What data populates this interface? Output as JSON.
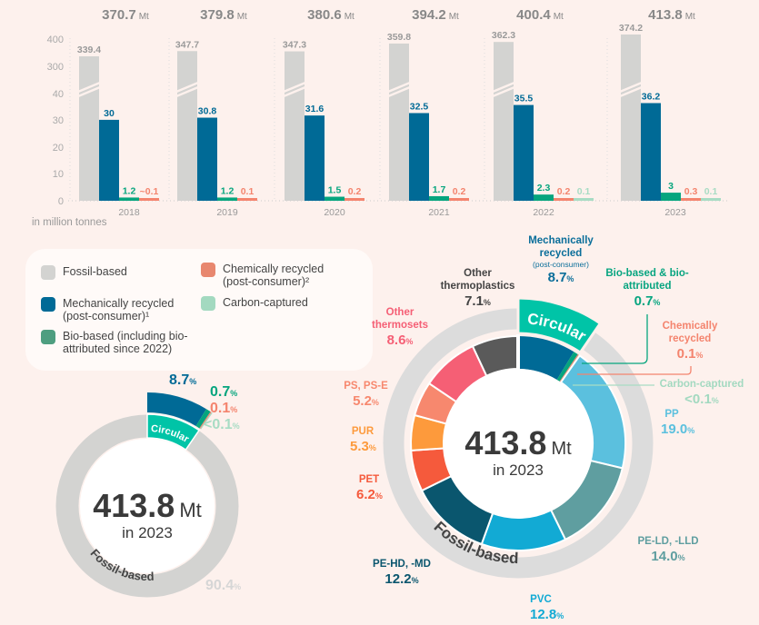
{
  "chart_data": [
    {
      "type": "bar",
      "unit_label": "in million tonnes",
      "y_ticks": [
        0,
        10,
        20,
        30,
        40,
        300,
        400
      ],
      "y_axis_break": "between 40 and 300",
      "grid": false,
      "categories": [
        "2018",
        "2019",
        "2020",
        "2021",
        "2022",
        "2023"
      ],
      "totals": [
        "370.7",
        "379.8",
        "380.6",
        "394.2",
        "400.4",
        "413.8"
      ],
      "total_unit": "Mt",
      "series": [
        {
          "name": "Fossil-based",
          "color": "#d3d3d1",
          "label_color": "#9a9a9a",
          "values": [
            339.4,
            347.7,
            347.3,
            359.8,
            362.3,
            374.2
          ],
          "labels": [
            "339.4",
            "347.7",
            "347.3",
            "359.8",
            "362.3",
            "374.2"
          ]
        },
        {
          "name": "Mechanically recycled (post-consumer)¹",
          "color": "#006a96",
          "label_color": "#006a96",
          "values": [
            30,
            30.8,
            31.6,
            32.5,
            35.5,
            36.2
          ],
          "labels": [
            "30",
            "30.8",
            "31.6",
            "32.5",
            "35.5",
            "36.2"
          ]
        },
        {
          "name": "Bio-based (including bio-attributed since 2022)",
          "color": "#06a57e",
          "label_color": "#06a57e",
          "values": [
            1.2,
            1.2,
            1.5,
            1.7,
            2.3,
            3
          ],
          "labels": [
            "1.2",
            "1.2",
            "1.5",
            "1.7",
            "2.3",
            "3"
          ]
        },
        {
          "name": "Chemically recycled (post-consumer)²",
          "color": "#f4846e",
          "label_color": "#f4846e",
          "values": [
            0.1,
            0.1,
            0.2,
            0.2,
            0.2,
            0.3
          ],
          "labels": [
            "~0.1",
            "0.1",
            "0.2",
            "0.2",
            "0.2",
            "0.3"
          ]
        },
        {
          "name": "Carbon-captured",
          "color": "#a8dcc4",
          "label_color": "#a8dcc4",
          "values": [
            null,
            null,
            null,
            null,
            0.1,
            0.1
          ],
          "labels": [
            null,
            null,
            null,
            null,
            "0.1",
            "0.1"
          ]
        }
      ]
    },
    {
      "type": "pie",
      "variant": "donut",
      "center_value": "413.8",
      "center_unit": "Mt",
      "center_sub": "in 2023",
      "ring_labels": {
        "circular": "Circular",
        "fossil": "Fossil-based"
      },
      "slices": [
        {
          "name": "Fossil-based",
          "value": 90.4,
          "label": "90.4",
          "color": "#d3d3d1"
        },
        {
          "name": "Mechanically recycled",
          "value": 8.7,
          "label": "8.7",
          "color": "#006a96"
        },
        {
          "name": "Bio-based",
          "value": 0.7,
          "label": "0.7",
          "color": "#06a57e"
        },
        {
          "name": "Chemically recycled",
          "value": 0.1,
          "label": "0.1",
          "color": "#f4846e"
        },
        {
          "name": "Carbon-captured",
          "value": 0.05,
          "label": "<0.1",
          "color": "#a8dcc4"
        }
      ],
      "circular_color": "#00c4a7",
      "pct_sign": "%"
    },
    {
      "type": "pie",
      "variant": "donut",
      "center_value": "413.8",
      "center_unit": "Mt",
      "center_sub": "in 2023",
      "ring_labels": {
        "circular": "Circular",
        "fossil": "Fossil-based"
      },
      "slices": [
        {
          "name": "Mechanically recycled",
          "sub": "(post-consumer)",
          "value": 8.7,
          "label": "8.7",
          "color": "#006a96"
        },
        {
          "name": "Bio-based & bio-attributed",
          "value": 0.7,
          "label": "0.7",
          "color": "#06a57e"
        },
        {
          "name": "Chemically recycled",
          "value": 0.1,
          "label": "0.1",
          "color": "#f4846e"
        },
        {
          "name": "Carbon-captured",
          "value": 0.05,
          "label": "<0.1",
          "color": "#a8dcc4"
        },
        {
          "name": "PP",
          "value": 19.0,
          "label": "19.0",
          "color": "#5bc0de"
        },
        {
          "name": "PE-LD, -LLD",
          "value": 14.0,
          "label": "14.0",
          "color": "#5f9ea0"
        },
        {
          "name": "PVC",
          "value": 12.8,
          "label": "12.8",
          "color": "#12aad4"
        },
        {
          "name": "PE-HD, -MD",
          "value": 12.2,
          "label": "12.2",
          "color": "#0a566e"
        },
        {
          "name": "PET",
          "value": 6.2,
          "label": "6.2",
          "color": "#f55a3c"
        },
        {
          "name": "PUR",
          "value": 5.3,
          "label": "5.3",
          "color": "#fd9a3c"
        },
        {
          "name": "PS, PS-E",
          "value": 5.2,
          "label": "5.2",
          "color": "#f7886e"
        },
        {
          "name": "Other thermosets",
          "value": 8.6,
          "label": "8.6",
          "color": "#f55f75"
        },
        {
          "name": "Other thermoplastics",
          "value": 7.1,
          "label": "7.1",
          "color": "#5a5a5a"
        }
      ],
      "circular_color": "#00c4a7",
      "pct_sign": "%"
    }
  ],
  "legend": {
    "items": [
      {
        "label": "Fossil-based",
        "color": "#d3d3d1"
      },
      {
        "label": "Mechanically recycled (post-consumer)¹",
        "color": "#006a96"
      },
      {
        "label": "Bio-based (including bio-attributed since 2022)",
        "color": "#4e9e80"
      },
      {
        "label": "Chemically recycled (post-consumer)²",
        "color": "#e8876f"
      },
      {
        "label": "Carbon-captured",
        "color": "#a3d9c0"
      }
    ]
  }
}
